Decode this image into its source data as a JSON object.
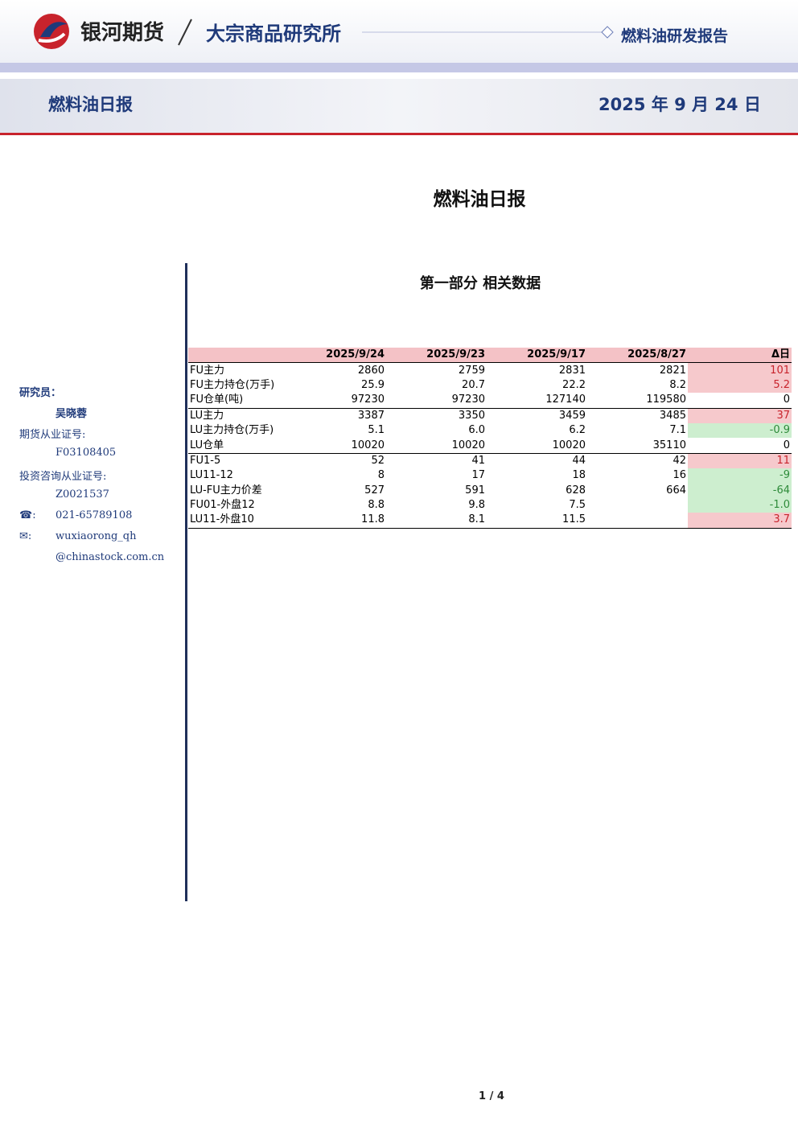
{
  "header": {
    "brand": "银河期货",
    "institute": "大宗商品研究所",
    "report_type": "燃料油研发报告"
  },
  "banner": {
    "title": "燃料油日报",
    "date": "2025 年 9 月 24 日"
  },
  "title": "燃料油日报",
  "sidebar": {
    "researcher_label": "研究员：",
    "researcher": "吴晓蓉",
    "license_label": "期货从业证号:",
    "license": "F03108405",
    "advisory_label": "投资咨询从业证号:",
    "advisory": "Z0021537",
    "phone": "021-65789108",
    "email_user": "wuxiaorong_qh",
    "email_domain": "@chinastock.com.cn"
  },
  "section": "第一部分 相关数据",
  "table": {
    "columns": [
      "2025/9/24",
      "2025/9/23",
      "2025/9/17",
      "2025/8/27",
      "Δ日"
    ],
    "rows": [
      [
        "FU主力",
        "2860",
        "2759",
        "2831",
        "2821",
        "101"
      ],
      [
        "FU主力持仓(万手)",
        "25.9",
        "20.7",
        "22.2",
        "8.2",
        "5.2"
      ],
      [
        "FU仓单(吨)",
        "97230",
        "97230",
        "127140",
        "119580",
        "0"
      ],
      [
        "LU主力",
        "3387",
        "3350",
        "3459",
        "3485",
        "37"
      ],
      [
        "LU主力持仓(万手)",
        "5.1",
        "6.0",
        "6.2",
        "7.1",
        "-0.9"
      ],
      [
        "LU仓单",
        "10020",
        "10020",
        "10020",
        "35110",
        "0"
      ],
      [
        "FU1-5",
        "52",
        "41",
        "44",
        "42",
        "11"
      ],
      [
        "LU11-12",
        "8",
        "17",
        "18",
        "16",
        "-9"
      ],
      [
        "LU-FU主力价差",
        "527",
        "591",
        "628",
        "664",
        "-64"
      ],
      [
        "FU01-外盘12",
        "8.8",
        "9.8",
        "7.5",
        null,
        "-1.0"
      ],
      [
        "LU11-外盘10",
        "11.8",
        "8.1",
        "11.5",
        null,
        "3.7"
      ]
    ]
  },
  "footer": {
    "page": "1 / 4"
  }
}
